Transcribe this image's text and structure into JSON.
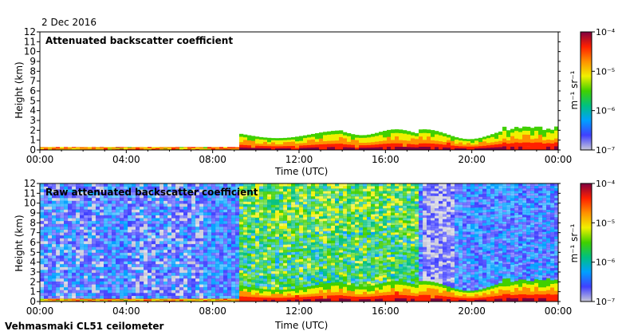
{
  "figure": {
    "date_label": "2 Dec 2016",
    "footer_label": "Vehmasmaki CL51 ceilometer"
  },
  "chart_data": [
    {
      "type": "heatmap",
      "title": "Attenuated backscatter coefficient",
      "xlabel": "Time (UTC)",
      "ylabel": "Height (km)",
      "x_ticks": [
        "00:00",
        "04:00",
        "08:00",
        "12:00",
        "16:00",
        "20:00",
        "00:00"
      ],
      "y_ticks": [
        0,
        1,
        2,
        3,
        4,
        5,
        6,
        7,
        8,
        9,
        10,
        11,
        12
      ],
      "xlim_hours": [
        0,
        24
      ],
      "ylim_km": [
        0,
        12
      ],
      "colorbar": {
        "scale": "log",
        "unit_label": "m⁻¹ sr⁻¹",
        "ticks": [
          "10⁻⁴",
          "10⁻⁵",
          "10⁻⁶",
          "10⁻⁷"
        ]
      }
    },
    {
      "type": "heatmap",
      "title": "Raw attenuated backscatter coefficient",
      "xlabel": "Time (UTC)",
      "ylabel": "Height (km)",
      "x_ticks": [
        "00:00",
        "04:00",
        "08:00",
        "12:00",
        "16:00",
        "20:00",
        "00:00"
      ],
      "y_ticks": [
        0,
        1,
        2,
        3,
        4,
        5,
        6,
        7,
        8,
        9,
        10,
        11,
        12
      ],
      "xlim_hours": [
        0,
        24
      ],
      "ylim_km": [
        0,
        12
      ],
      "colorbar": {
        "scale": "log",
        "unit_label": "m⁻¹ sr⁻¹",
        "ticks": [
          "10⁻⁴",
          "10⁻⁵",
          "10⁻⁶",
          "10⁻⁷"
        ]
      }
    }
  ]
}
